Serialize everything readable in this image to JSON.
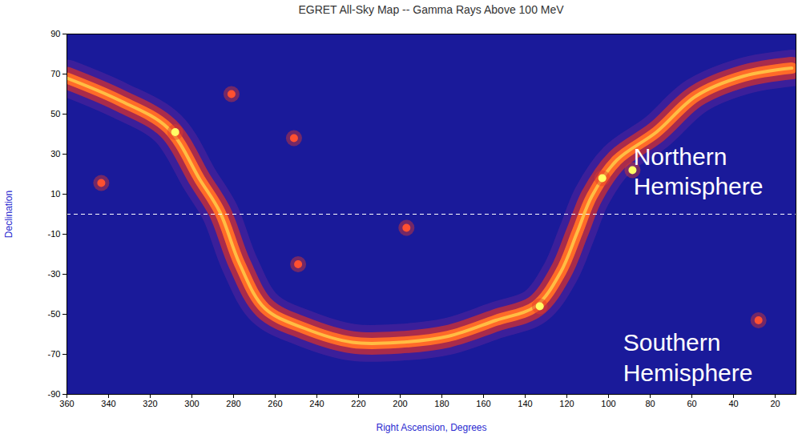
{
  "chart_data": {
    "type": "line",
    "title": "EGRET All-Sky Map -- Gamma Rays Above 100 MeV",
    "x_label": "Right Ascension, Degrees",
    "y_label": "Declination",
    "xlim": [
      360,
      10
    ],
    "ylim": [
      -90,
      90
    ],
    "xticks": [
      360,
      340,
      320,
      300,
      280,
      260,
      240,
      220,
      200,
      180,
      160,
      140,
      120,
      100,
      80,
      60,
      40,
      20
    ],
    "yticks": [
      90,
      70,
      50,
      30,
      10,
      -10,
      -30,
      -50,
      -70,
      -90
    ],
    "grid": false,
    "series": [
      {
        "type": "line",
        "color": "#ff6a28",
        "x": [
          360,
          335,
          311.5,
          296,
          286.5,
          277,
          265,
          246,
          223,
          200,
          177,
          154,
          135,
          123,
          115,
          108,
          96,
          77,
          58,
          35,
          12
        ],
        "values": [
          68,
          57,
          43,
          17,
          1,
          -25,
          -47,
          -57,
          -64,
          -64,
          -61,
          -53,
          -46,
          -29,
          -9,
          9,
          27,
          41,
          59,
          69,
          73
        ]
      },
      {
        "type": "scatter",
        "color": "#ffff66",
        "marker": "circle",
        "x": [
          308,
          103,
          88.5,
          133
        ],
        "values": [
          41,
          18,
          22,
          -46
        ]
      },
      {
        "type": "scatter",
        "color": "#ff5030",
        "marker": "circle",
        "x": [
          343.5,
          281,
          251,
          197,
          249,
          28
        ],
        "values": [
          15.6,
          60,
          38,
          -6.8,
          -25,
          -53
        ]
      }
    ],
    "reference_lines": [
      {
        "y": 0,
        "line_style": "dashed"
      }
    ],
    "annotations": [
      {
        "text": "Northern Hemisphere",
        "x": 88,
        "y": 22
      },
      {
        "text": "Southern Hemisphere",
        "x": 93,
        "y": -71
      }
    ]
  }
}
